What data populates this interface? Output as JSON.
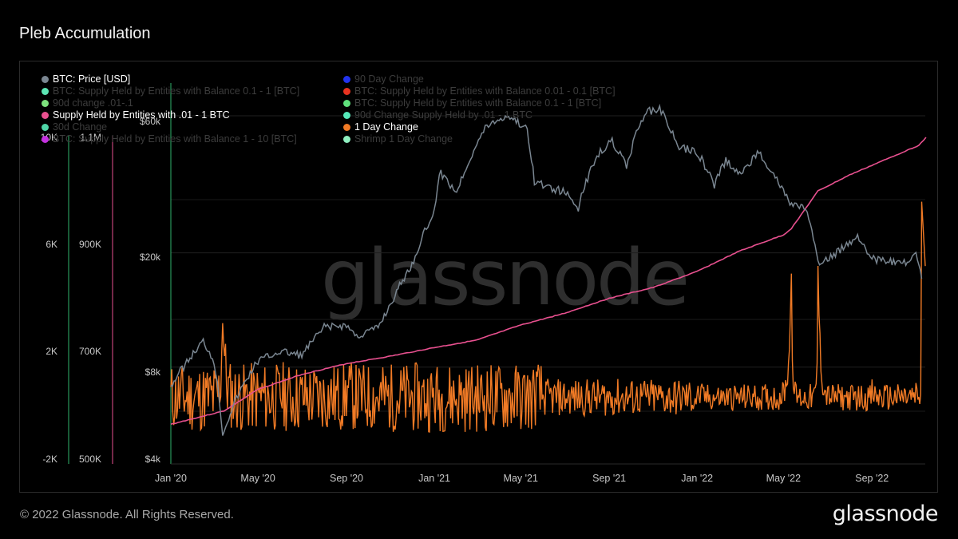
{
  "title": "Pleb Accumulation",
  "footer": "© 2022 Glassnode. All Rights Reserved.",
  "brand": "glassnode",
  "watermark": "glassnode",
  "legend": [
    {
      "label": "BTC: Price [USD]",
      "color": "#7a8691",
      "active": true
    },
    {
      "label": "BTC: Supply Held by Entities with Balance 0.1 - 1 [BTC]",
      "color": "#5ce6b4",
      "active": false
    },
    {
      "label": "90d change .01-.1",
      "color": "#7de27d",
      "active": false
    },
    {
      "label": "Supply Held by Entities with .01 - 1 BTC",
      "color": "#e8508f",
      "active": true
    },
    {
      "label": "30d Change",
      "color": "#4fd6a8",
      "active": false
    },
    {
      "label": "BTC: Supply Held by Entities with Balance 1 - 10 [BTC]",
      "color": "#c531e0",
      "active": false
    },
    {
      "label": "90 Day Change",
      "color": "#2233ee",
      "active": false
    },
    {
      "label": "BTC: Supply Held by Entities with Balance 0.01 - 0.1 [BTC]",
      "color": "#e8321f",
      "active": false
    },
    {
      "label": "BTC: Supply Held by Entities with Balance 0.1 - 1 [BTC]",
      "color": "#5fe07c",
      "active": false
    },
    {
      "label": "90d Change Supply Held by .01 - 1 BTC",
      "color": "#55e8b9",
      "active": false
    },
    {
      "label": "1 Day Change",
      "color": "#f07a25",
      "active": true
    },
    {
      "label": "Shrimp 1 Day Change",
      "color": "#8ff0c0",
      "active": false
    }
  ],
  "chart_data": {
    "type": "line",
    "x_ticks": [
      "Jan '20",
      "May '20",
      "Sep '20",
      "Jan '21",
      "May '21",
      "Sep '21",
      "Jan '22",
      "May '22",
      "Sep '22"
    ],
    "axes": {
      "price": {
        "ticks": [
          "$4k",
          "$8k",
          "$20k",
          "$60k"
        ],
        "scale": "log",
        "color": "#7a8691"
      },
      "supply": {
        "ticks": [
          "500K",
          "700K",
          "900K",
          "1.1M"
        ],
        "color": "#e8508f"
      },
      "change": {
        "ticks": [
          "-2K",
          "2K",
          "6K",
          "10K"
        ],
        "color": "#2fb36b"
      }
    },
    "series": [
      {
        "name": "BTC: Price [USD]",
        "color": "#7a8691",
        "axis": "price",
        "points": [
          [
            "2020-01-01",
            7200
          ],
          [
            "2020-02-01",
            9300
          ],
          [
            "2020-02-15",
            10300
          ],
          [
            "2020-03-01",
            8800
          ],
          [
            "2020-03-13",
            4900
          ],
          [
            "2020-04-01",
            6500
          ],
          [
            "2020-05-01",
            8800
          ],
          [
            "2020-06-01",
            9500
          ],
          [
            "2020-07-01",
            9200
          ],
          [
            "2020-08-01",
            11500
          ],
          [
            "2020-09-01",
            11700
          ],
          [
            "2020-09-15",
            10700
          ],
          [
            "2020-10-15",
            11500
          ],
          [
            "2020-11-01",
            13800
          ],
          [
            "2020-12-01",
            19000
          ],
          [
            "2021-01-01",
            29000
          ],
          [
            "2021-01-08",
            40000
          ],
          [
            "2021-02-01",
            34000
          ],
          [
            "2021-03-01",
            50000
          ],
          [
            "2021-03-15",
            58000
          ],
          [
            "2021-04-14",
            63000
          ],
          [
            "2021-05-10",
            56000
          ],
          [
            "2021-05-20",
            37000
          ],
          [
            "2021-06-01",
            36000
          ],
          [
            "2021-07-01",
            34000
          ],
          [
            "2021-07-20",
            30000
          ],
          [
            "2021-08-15",
            46000
          ],
          [
            "2021-09-05",
            51000
          ],
          [
            "2021-09-25",
            42000
          ],
          [
            "2021-10-20",
            64000
          ],
          [
            "2021-11-10",
            67000
          ],
          [
            "2021-12-05",
            49000
          ],
          [
            "2022-01-01",
            47000
          ],
          [
            "2022-01-25",
            36000
          ],
          [
            "2022-02-10",
            44000
          ],
          [
            "2022-03-01",
            39000
          ],
          [
            "2022-03-28",
            47000
          ],
          [
            "2022-04-15",
            40000
          ],
          [
            "2022-05-10",
            31000
          ],
          [
            "2022-06-01",
            30000
          ],
          [
            "2022-06-18",
            19000
          ],
          [
            "2022-07-10",
            20500
          ],
          [
            "2022-08-12",
            24000
          ],
          [
            "2022-09-01",
            20000
          ],
          [
            "2022-10-01",
            19300
          ],
          [
            "2022-10-20",
            19200
          ],
          [
            "2022-11-01",
            20500
          ],
          [
            "2022-11-09",
            17000
          ]
        ]
      },
      {
        "name": "Supply Held by Entities with .01 - 1 BTC",
        "color": "#e8508f",
        "axis": "supply",
        "points": [
          [
            "2020-01-01",
            565000
          ],
          [
            "2020-03-15",
            590000
          ],
          [
            "2020-05-01",
            630000
          ],
          [
            "2020-07-01",
            658000
          ],
          [
            "2020-09-01",
            678000
          ],
          [
            "2020-11-01",
            692000
          ],
          [
            "2021-01-01",
            708000
          ],
          [
            "2021-03-01",
            722000
          ],
          [
            "2021-05-01",
            750000
          ],
          [
            "2021-07-01",
            772000
          ],
          [
            "2021-09-01",
            800000
          ],
          [
            "2021-11-01",
            820000
          ],
          [
            "2022-01-01",
            850000
          ],
          [
            "2022-03-01",
            888000
          ],
          [
            "2022-05-01",
            918000
          ],
          [
            "2022-05-12",
            930000
          ],
          [
            "2022-06-18",
            1000000
          ],
          [
            "2022-08-01",
            1030000
          ],
          [
            "2022-10-01",
            1065000
          ],
          [
            "2022-11-05",
            1085000
          ],
          [
            "2022-11-15",
            1100000
          ]
        ]
      },
      {
        "name": "1 Day Change",
        "color": "#f07a25",
        "axis": "change",
        "noise_note": "daily values oscillate roughly between -1K and 1.5K with spikes",
        "points": [
          [
            "2020-01-01",
            0
          ],
          [
            "2020-03-13",
            3500
          ],
          [
            "2020-06-01",
            200
          ],
          [
            "2020-09-01",
            300
          ],
          [
            "2021-01-01",
            0
          ],
          [
            "2021-05-20",
            300
          ],
          [
            "2021-09-01",
            0
          ],
          [
            "2022-01-01",
            100
          ],
          [
            "2022-05-12",
            4600
          ],
          [
            "2022-06-18",
            4900
          ],
          [
            "2022-09-01",
            200
          ],
          [
            "2022-11-01",
            100
          ],
          [
            "2022-11-09",
            7600
          ]
        ]
      }
    ]
  }
}
